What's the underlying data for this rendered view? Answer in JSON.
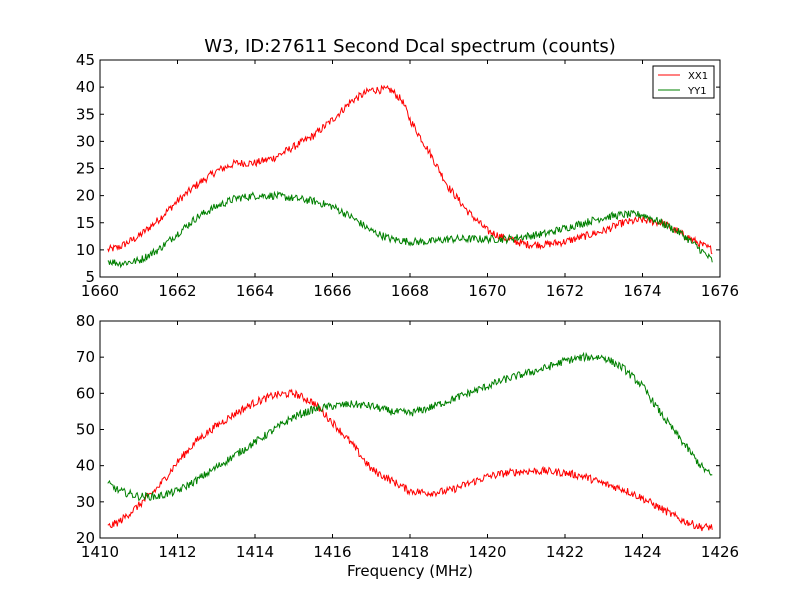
{
  "chart_data": [
    {
      "type": "line",
      "title": "W3, ID:27611 Second Dcal spectrum (counts)",
      "xlabel": "",
      "ylabel": "",
      "xlim": [
        1660,
        1676
      ],
      "ylim": [
        5,
        45
      ],
      "xticks": [
        1660,
        1662,
        1664,
        1666,
        1668,
        1670,
        1672,
        1674,
        1676
      ],
      "yticks": [
        5,
        10,
        15,
        20,
        25,
        30,
        35,
        40,
        45
      ],
      "grid": false,
      "legend": "top-right",
      "series": [
        {
          "name": "XX1",
          "color": "#ff0000",
          "x": [
            1660.2,
            1660.5,
            1661.0,
            1661.5,
            1662.0,
            1662.5,
            1663.0,
            1663.5,
            1664.0,
            1664.5,
            1665.0,
            1665.5,
            1666.0,
            1666.5,
            1667.0,
            1667.5,
            1667.8,
            1668.0,
            1668.5,
            1669.0,
            1669.5,
            1670.0,
            1670.5,
            1671.0,
            1671.5,
            1672.0,
            1672.5,
            1673.0,
            1673.5,
            1674.0,
            1674.5,
            1675.0,
            1675.5,
            1675.8
          ],
          "y": [
            10,
            10.5,
            12.5,
            15.5,
            19,
            22,
            24.5,
            26,
            26,
            27,
            29,
            31,
            34,
            37.5,
            39.5,
            39.5,
            37.5,
            34,
            28,
            21.5,
            17,
            13.5,
            12,
            11,
            11,
            11.5,
            12.5,
            13.5,
            15,
            15.5,
            15,
            13,
            11,
            10
          ]
        },
        {
          "name": "YY1",
          "color": "#008000",
          "x": [
            1660.2,
            1660.5,
            1661.0,
            1661.5,
            1662.0,
            1662.5,
            1663.0,
            1663.5,
            1664.0,
            1664.5,
            1665.0,
            1665.5,
            1666.0,
            1666.5,
            1667.0,
            1667.5,
            1668.0,
            1668.5,
            1669.0,
            1669.5,
            1670.0,
            1670.5,
            1671.0,
            1671.5,
            1672.0,
            1672.5,
            1673.0,
            1673.5,
            1674.0,
            1674.5,
            1675.0,
            1675.5,
            1675.8
          ],
          "y": [
            8,
            7.5,
            8,
            10,
            13,
            16,
            18,
            19.5,
            20,
            20,
            19.5,
            19,
            18,
            16,
            13.5,
            12,
            11.5,
            11.5,
            12,
            12,
            12,
            12,
            12.5,
            13,
            14,
            15,
            16,
            16.5,
            16.5,
            15,
            13,
            10,
            8
          ]
        }
      ]
    },
    {
      "type": "line",
      "title": "",
      "xlabel": "Frequency (MHz)",
      "ylabel": "",
      "xlim": [
        1410,
        1426
      ],
      "ylim": [
        20,
        80
      ],
      "xticks": [
        1410,
        1412,
        1414,
        1416,
        1418,
        1420,
        1422,
        1424,
        1426
      ],
      "yticks": [
        20,
        30,
        40,
        50,
        60,
        70,
        80
      ],
      "grid": false,
      "legend": "none",
      "series": [
        {
          "name": "XX1",
          "color": "#ff0000",
          "x": [
            1410.2,
            1410.5,
            1411.0,
            1411.5,
            1412.0,
            1412.5,
            1413.0,
            1413.5,
            1414.0,
            1414.5,
            1415.0,
            1415.5,
            1416.0,
            1416.5,
            1417.0,
            1417.5,
            1418.0,
            1418.5,
            1419.0,
            1419.5,
            1420.0,
            1420.5,
            1421.0,
            1421.5,
            1422.0,
            1422.5,
            1423.0,
            1423.5,
            1424.0,
            1424.5,
            1425.0,
            1425.5,
            1425.8
          ],
          "y": [
            23,
            24.5,
            29,
            34,
            41,
            47,
            51,
            54.5,
            57.5,
            59.5,
            60,
            57.5,
            52,
            46,
            39,
            36,
            33,
            32.5,
            33,
            35,
            37,
            38,
            38.5,
            38.5,
            38,
            37,
            35,
            33.5,
            31,
            28,
            25,
            23,
            23
          ]
        },
        {
          "name": "YY1",
          "color": "#008000",
          "x": [
            1410.2,
            1410.5,
            1411.0,
            1411.5,
            1412.0,
            1412.5,
            1413.0,
            1413.5,
            1414.0,
            1414.5,
            1415.0,
            1415.5,
            1416.0,
            1416.5,
            1417.0,
            1417.5,
            1418.0,
            1418.5,
            1419.0,
            1419.5,
            1420.0,
            1420.5,
            1421.0,
            1421.5,
            1422.0,
            1422.5,
            1423.0,
            1423.5,
            1424.0,
            1424.5,
            1425.0,
            1425.5,
            1425.8
          ],
          "y": [
            35,
            33,
            31.5,
            31.5,
            33,
            36,
            39.5,
            43,
            46.5,
            50,
            53.5,
            55.5,
            56.5,
            57,
            56.5,
            55,
            54.5,
            56,
            58,
            60,
            62,
            64,
            65.5,
            67,
            69,
            70,
            70,
            67,
            62,
            54,
            47,
            40,
            37
          ]
        }
      ]
    }
  ]
}
